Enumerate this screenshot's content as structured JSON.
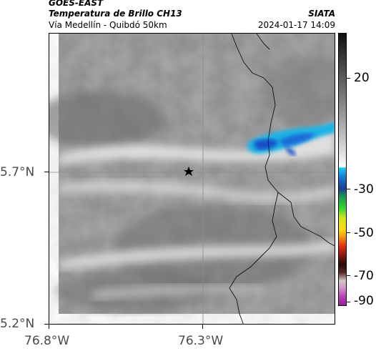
{
  "header": {
    "satellite": "GOES-EAST",
    "product": "Temperatura de Brillo CH13",
    "route": "Vía Medellín - Quibdó 50km",
    "org": "SIATA",
    "timestamp": "2024-01-17 14:09"
  },
  "axes": {
    "lon_labels": [
      "76.8°W",
      "76.3°W"
    ],
    "lat_labels": [
      "5.7°N",
      "5.2°N"
    ]
  },
  "colorbar": {
    "labels": [
      "20",
      "-30",
      "-50",
      "-70",
      "-90"
    ],
    "unit_values": [
      20,
      -30,
      -50,
      -70,
      -90
    ]
  },
  "colors": {
    "cold_cloud": "#1fb4e6",
    "deep_cloud": "#1450c8",
    "frame": "#000000"
  },
  "icons": {
    "station_marker": "star-icon"
  }
}
